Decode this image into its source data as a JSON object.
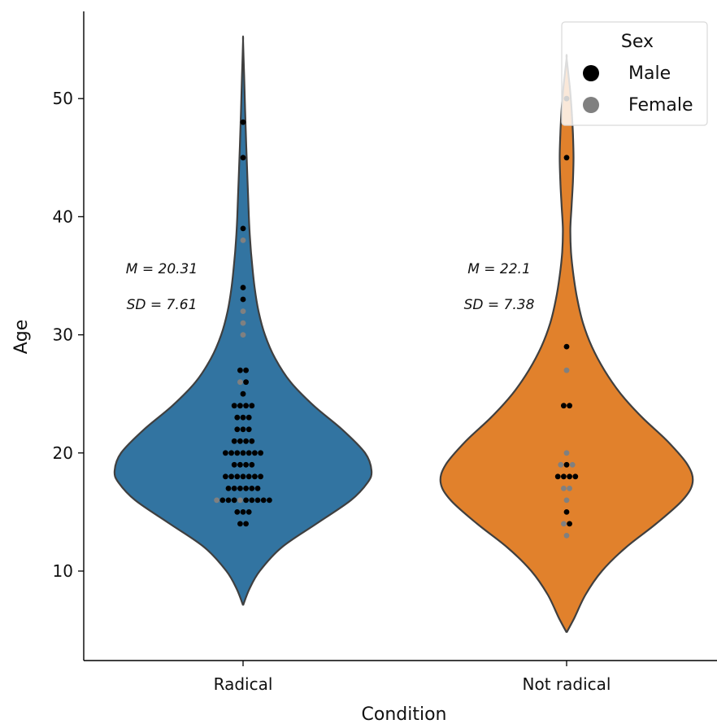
{
  "chart_data": {
    "type": "violin",
    "xlabel": "Condition",
    "ylabel": "Age",
    "categories": [
      "Radical",
      "Not radical"
    ],
    "ylim": [
      3,
      58
    ],
    "yticks": [
      10,
      20,
      30,
      40,
      50
    ],
    "grid": false,
    "colors": {
      "Radical": "#3274a1",
      "Not radical": "#e1812c",
      "Male": "#000000",
      "Female": "#808080",
      "outline": "#3f3f3f"
    },
    "legend": {
      "title": "Sex",
      "position": "top-right",
      "entries": [
        "Male",
        "Female"
      ]
    },
    "annotations": [
      {
        "category": "Radical",
        "mean_text": "M = 20.31",
        "sd_text": "SD = 7.61"
      },
      {
        "category": "Not radical",
        "mean_text": "M = 22.1",
        "sd_text": "SD = 7.38"
      }
    ],
    "violins": [
      {
        "category": "Radical",
        "min": 7.1,
        "max": 54.9,
        "profile": [
          [
            7.1,
            0
          ],
          [
            8.5,
            0.05
          ],
          [
            10,
            0.13
          ],
          [
            12,
            0.3
          ],
          [
            14,
            0.57
          ],
          [
            16,
            0.84
          ],
          [
            17.5,
            0.97
          ],
          [
            18.5,
            1.0
          ],
          [
            20,
            0.95
          ],
          [
            22,
            0.77
          ],
          [
            24,
            0.55
          ],
          [
            26,
            0.37
          ],
          [
            28,
            0.25
          ],
          [
            30,
            0.17
          ],
          [
            32,
            0.12
          ],
          [
            34,
            0.09
          ],
          [
            36,
            0.07
          ],
          [
            38,
            0.055
          ],
          [
            40,
            0.045
          ],
          [
            43,
            0.035
          ],
          [
            46,
            0.025
          ],
          [
            49,
            0.016
          ],
          [
            52,
            0.008
          ],
          [
            54.9,
            0
          ]
        ],
        "points": [
          {
            "y": 48,
            "sex": "Male"
          },
          {
            "y": 45,
            "sex": "Male"
          },
          {
            "y": 39,
            "sex": "Male"
          },
          {
            "y": 38,
            "sex": "Female"
          },
          {
            "y": 34,
            "sex": "Male"
          },
          {
            "y": 33,
            "sex": "Male"
          },
          {
            "y": 32,
            "sex": "Female"
          },
          {
            "y": 31,
            "sex": "Female"
          },
          {
            "y": 30,
            "sex": "Female"
          },
          {
            "y": 27,
            "sex": "Male"
          },
          {
            "y": 27,
            "sex": "Male"
          },
          {
            "y": 26,
            "sex": "Female"
          },
          {
            "y": 26,
            "sex": "Male"
          },
          {
            "y": 25,
            "sex": "Male"
          },
          {
            "y": 24,
            "sex": "Male"
          },
          {
            "y": 24,
            "sex": "Male"
          },
          {
            "y": 24,
            "sex": "Male"
          },
          {
            "y": 24,
            "sex": "Male"
          },
          {
            "y": 23,
            "sex": "Male"
          },
          {
            "y": 23,
            "sex": "Male"
          },
          {
            "y": 23,
            "sex": "Male"
          },
          {
            "y": 22,
            "sex": "Male"
          },
          {
            "y": 22,
            "sex": "Male"
          },
          {
            "y": 22,
            "sex": "Male"
          },
          {
            "y": 21,
            "sex": "Male"
          },
          {
            "y": 21,
            "sex": "Male"
          },
          {
            "y": 21,
            "sex": "Male"
          },
          {
            "y": 21,
            "sex": "Male"
          },
          {
            "y": 20,
            "sex": "Male"
          },
          {
            "y": 20,
            "sex": "Male"
          },
          {
            "y": 20,
            "sex": "Male"
          },
          {
            "y": 20,
            "sex": "Male"
          },
          {
            "y": 20,
            "sex": "Male"
          },
          {
            "y": 20,
            "sex": "Male"
          },
          {
            "y": 20,
            "sex": "Male"
          },
          {
            "y": 19,
            "sex": "Male"
          },
          {
            "y": 19,
            "sex": "Male"
          },
          {
            "y": 19,
            "sex": "Male"
          },
          {
            "y": 19,
            "sex": "Male"
          },
          {
            "y": 18,
            "sex": "Male"
          },
          {
            "y": 18,
            "sex": "Male"
          },
          {
            "y": 18,
            "sex": "Male"
          },
          {
            "y": 18,
            "sex": "Male"
          },
          {
            "y": 18,
            "sex": "Male"
          },
          {
            "y": 18,
            "sex": "Male"
          },
          {
            "y": 18,
            "sex": "Male"
          },
          {
            "y": 17,
            "sex": "Male"
          },
          {
            "y": 17,
            "sex": "Male"
          },
          {
            "y": 17,
            "sex": "Male"
          },
          {
            "y": 17,
            "sex": "Male"
          },
          {
            "y": 17,
            "sex": "Male"
          },
          {
            "y": 17,
            "sex": "Male"
          },
          {
            "y": 16,
            "sex": "Female"
          },
          {
            "y": 16,
            "sex": "Male"
          },
          {
            "y": 16,
            "sex": "Male"
          },
          {
            "y": 16,
            "sex": "Male"
          },
          {
            "y": 16,
            "sex": "Female"
          },
          {
            "y": 16,
            "sex": "Male"
          },
          {
            "y": 16,
            "sex": "Male"
          },
          {
            "y": 16,
            "sex": "Male"
          },
          {
            "y": 16,
            "sex": "Male"
          },
          {
            "y": 16,
            "sex": "Male"
          },
          {
            "y": 15,
            "sex": "Male"
          },
          {
            "y": 15,
            "sex": "Male"
          },
          {
            "y": 15,
            "sex": "Male"
          },
          {
            "y": 14,
            "sex": "Male"
          },
          {
            "y": 14,
            "sex": "Male"
          }
        ]
      },
      {
        "category": "Not radical",
        "min": 4.8,
        "max": 53.4,
        "profile": [
          [
            4.8,
            0
          ],
          [
            6,
            0.06
          ],
          [
            8,
            0.15
          ],
          [
            10,
            0.28
          ],
          [
            12,
            0.47
          ],
          [
            14,
            0.71
          ],
          [
            16,
            0.92
          ],
          [
            17.5,
            1.0
          ],
          [
            19,
            0.96
          ],
          [
            21,
            0.8
          ],
          [
            23,
            0.6
          ],
          [
            25,
            0.43
          ],
          [
            27,
            0.3
          ],
          [
            29,
            0.2
          ],
          [
            31,
            0.13
          ],
          [
            33,
            0.085
          ],
          [
            35,
            0.055
          ],
          [
            37,
            0.035
          ],
          [
            39,
            0.03
          ],
          [
            41,
            0.04
          ],
          [
            43,
            0.05
          ],
          [
            45,
            0.055
          ],
          [
            47,
            0.05
          ],
          [
            49,
            0.04
          ],
          [
            51,
            0.025
          ],
          [
            53.4,
            0
          ]
        ],
        "points": [
          {
            "y": 50,
            "sex": "Male"
          },
          {
            "y": 45,
            "sex": "Male"
          },
          {
            "y": 29,
            "sex": "Male"
          },
          {
            "y": 27,
            "sex": "Female"
          },
          {
            "y": 24,
            "sex": "Male"
          },
          {
            "y": 24,
            "sex": "Male"
          },
          {
            "y": 20,
            "sex": "Female"
          },
          {
            "y": 19,
            "sex": "Female"
          },
          {
            "y": 19,
            "sex": "Male"
          },
          {
            "y": 19,
            "sex": "Female"
          },
          {
            "y": 18,
            "sex": "Male"
          },
          {
            "y": 18,
            "sex": "Male"
          },
          {
            "y": 18,
            "sex": "Male"
          },
          {
            "y": 18,
            "sex": "Male"
          },
          {
            "y": 17,
            "sex": "Female"
          },
          {
            "y": 17,
            "sex": "Female"
          },
          {
            "y": 16,
            "sex": "Female"
          },
          {
            "y": 15,
            "sex": "Male"
          },
          {
            "y": 14,
            "sex": "Female"
          },
          {
            "y": 14,
            "sex": "Male"
          },
          {
            "y": 13,
            "sex": "Female"
          }
        ]
      }
    ]
  }
}
